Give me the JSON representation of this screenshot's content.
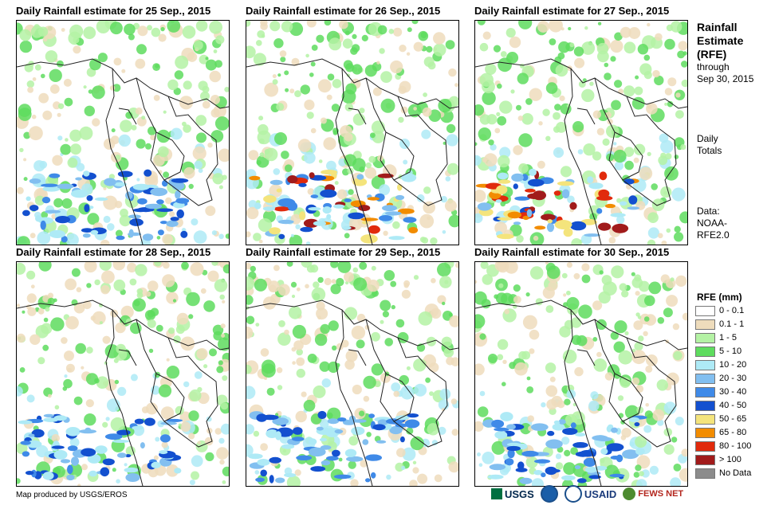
{
  "panels": [
    {
      "title": "Daily Rainfall estimate for 25 Sep., 2015",
      "pattern": 1
    },
    {
      "title": "Daily Rainfall estimate for 26 Sep., 2015",
      "pattern": 2
    },
    {
      "title": "Daily Rainfall estimate for 27 Sep., 2015",
      "pattern": 3
    },
    {
      "title": "Daily Rainfall estimate for 28 Sep., 2015",
      "pattern": 4
    },
    {
      "title": "Daily Rainfall estimate for 29 Sep., 2015",
      "pattern": 5
    },
    {
      "title": "Daily Rainfall estimate for 30 Sep., 2015",
      "pattern": 6
    }
  ],
  "side": {
    "title_line1": "Rainfall",
    "title_line2": "Estimate",
    "title_line3": "(RFE)",
    "through_line1": "through",
    "through_line2": "Sep 30, 2015",
    "daily_line1": "Daily",
    "daily_line2": "Totals",
    "data_line1": "Data:",
    "data_line2": "NOAA-",
    "data_line3": "RFE2.0"
  },
  "legend": {
    "title": "RFE (mm)",
    "items": [
      {
        "label": "0 - 0.1",
        "color": "#ffffff"
      },
      {
        "label": "0.1 - 1",
        "color": "#eedcbc"
      },
      {
        "label": "1 - 5",
        "color": "#b4f2a4"
      },
      {
        "label": "5 - 10",
        "color": "#5edc5e"
      },
      {
        "label": "10 - 20",
        "color": "#aeeaf6"
      },
      {
        "label": "20 - 30",
        "color": "#82bff0"
      },
      {
        "label": "30 - 40",
        "color": "#3f8ae8"
      },
      {
        "label": "40 - 50",
        "color": "#1350cf"
      },
      {
        "label": "50 - 65",
        "color": "#f4e47c"
      },
      {
        "label": "65 - 80",
        "color": "#f28c00"
      },
      {
        "label": "80 - 100",
        "color": "#e12a0c"
      },
      {
        "label": "> 100",
        "color": "#a11b1b"
      },
      {
        "label": "No Data",
        "color": "#8c8c8c"
      }
    ]
  },
  "credit": "Map produced by USGS/EROS",
  "logos": {
    "usgs": "USGS",
    "usaid": "USAID",
    "fewsnet": "FEWS NET"
  }
}
